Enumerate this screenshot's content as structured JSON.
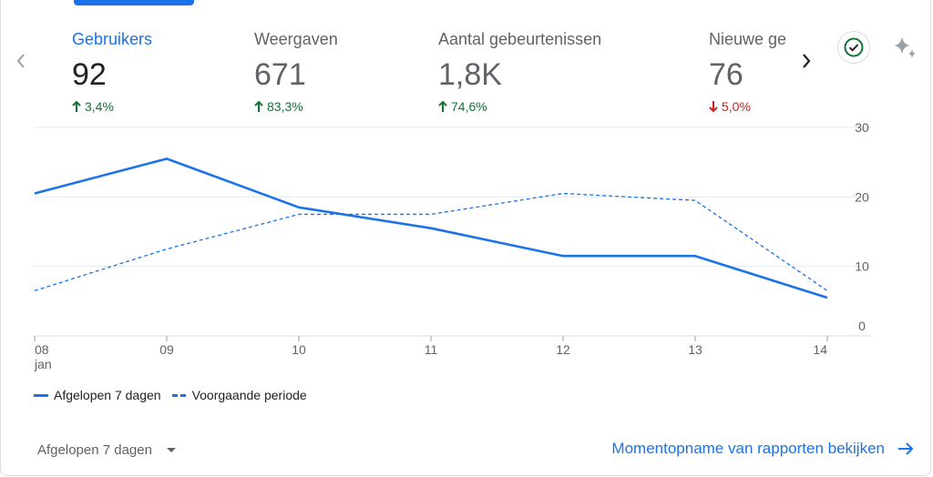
{
  "metrics": [
    {
      "label": "Gebruikers",
      "value": "92",
      "change": "3,4%",
      "direction": "up",
      "active": true
    },
    {
      "label": "Weergaven",
      "value": "671",
      "change": "83,3%",
      "direction": "up",
      "active": false
    },
    {
      "label": "Aantal gebeurtenissen",
      "value": "1,8K",
      "change": "74,6%",
      "direction": "up",
      "active": false
    },
    {
      "label": "Nieuwe gebruikers",
      "value": "76",
      "change": "5,0%",
      "direction": "down",
      "active": false
    }
  ],
  "icons": {
    "prev": "chevron-left-icon",
    "next": "chevron-right-icon",
    "status": "check-circle-icon",
    "insights": "sparkle-icon",
    "dropdown": "caret-down-icon",
    "link": "arrow-right-icon"
  },
  "colors": {
    "accent": "#1a73e8",
    "positive": "#137333",
    "negative": "#c5221f",
    "muted": "#5f6368"
  },
  "chart_data": {
    "type": "line",
    "x": [
      "08",
      "09",
      "10",
      "11",
      "12",
      "13",
      "14"
    ],
    "x_sublabel_first": "jan",
    "series": [
      {
        "name": "Afgelopen 7 dagen",
        "style": "solid",
        "values": [
          20.5,
          25.5,
          18.5,
          15.5,
          11.5,
          11.5,
          5.5
        ]
      },
      {
        "name": "Voorgaande periode",
        "style": "dashed",
        "values": [
          6.5,
          12.5,
          17.5,
          17.5,
          20.5,
          19.5,
          6.5
        ]
      }
    ],
    "y_ticks": [
      0,
      10,
      20,
      30
    ],
    "ylim": [
      0,
      30
    ],
    "y_axis_side": "right",
    "grid": true
  },
  "legend": {
    "current": "Afgelopen 7 dagen",
    "previous": "Voorgaande periode"
  },
  "footer": {
    "period": "Afgelopen 7 dagen",
    "link": "Momentopname van rapporten bekijken"
  }
}
